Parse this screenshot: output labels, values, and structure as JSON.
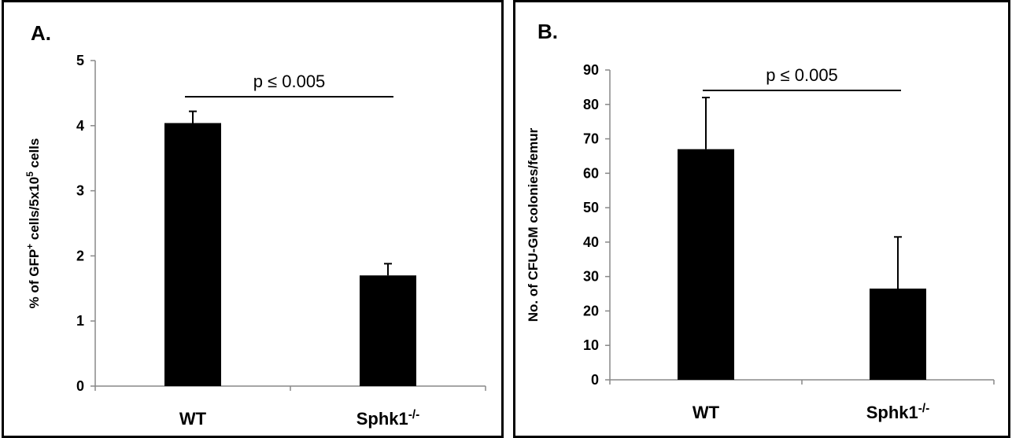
{
  "chart_data": [
    {
      "type": "bar",
      "panel_label": "A.",
      "title": "",
      "xlabel": "",
      "ylabel": "% of GFP⁺ cells/5x10⁵ cells",
      "categories": [
        "WT",
        "Sphk1⁻/⁻"
      ],
      "values": [
        4.04,
        1.7
      ],
      "errors": [
        0.18,
        0.18
      ],
      "ylim": [
        0,
        5
      ],
      "yticks": [
        0,
        1,
        2,
        3,
        4,
        5
      ],
      "annotation": "p < 0.005",
      "annotation_display": "p ≤ 0.005",
      "bar_color": "#000000",
      "grid": false
    },
    {
      "type": "bar",
      "panel_label": "B.",
      "title": "",
      "xlabel": "",
      "ylabel": "No. of CFU-GM colonies/femur",
      "categories": [
        "WT",
        "Sphk1⁻/⁻"
      ],
      "values": [
        67,
        26.5
      ],
      "errors": [
        15,
        15
      ],
      "ylim": [
        0,
        90
      ],
      "yticks": [
        0,
        10,
        20,
        30,
        40,
        50,
        60,
        70,
        80,
        90
      ],
      "annotation": "p < 0.005",
      "annotation_display": "p ≤ 0.005",
      "bar_color": "#000000",
      "grid": false
    }
  ]
}
